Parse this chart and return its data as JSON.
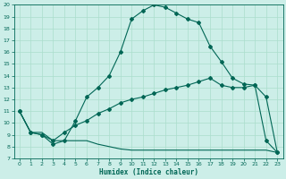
{
  "xlabel": "Humidex (Indice chaleur)",
  "xlim": [
    -0.5,
    23.5
  ],
  "ylim": [
    7,
    20
  ],
  "yticks": [
    7,
    8,
    9,
    10,
    11,
    12,
    13,
    14,
    15,
    16,
    17,
    18,
    19,
    20
  ],
  "xticks": [
    0,
    1,
    2,
    3,
    4,
    5,
    6,
    7,
    8,
    9,
    10,
    11,
    12,
    13,
    14,
    15,
    16,
    17,
    18,
    19,
    20,
    21,
    22,
    23
  ],
  "bg_color": "#cceee8",
  "line_color": "#006655",
  "grid_color": "#aaddcc",
  "series1_x": [
    0,
    1,
    2,
    3,
    4,
    5,
    6,
    7,
    8,
    9,
    10,
    11,
    12,
    13,
    14,
    15,
    16,
    17,
    18,
    19,
    20,
    21,
    22,
    23
  ],
  "series1_y": [
    11.0,
    9.2,
    9.0,
    8.2,
    8.5,
    10.2,
    12.2,
    13.0,
    14.0,
    16.0,
    18.8,
    19.5,
    20.0,
    19.8,
    19.3,
    18.8,
    18.5,
    16.5,
    15.2,
    13.8,
    13.3,
    13.2,
    12.2,
    7.5
  ],
  "series2_x": [
    0,
    1,
    2,
    3,
    4,
    5,
    6,
    7,
    8,
    9,
    10,
    11,
    12,
    13,
    14,
    15,
    16,
    17,
    18,
    19,
    20,
    21,
    22,
    23
  ],
  "series2_y": [
    11.0,
    9.2,
    9.0,
    8.5,
    9.2,
    9.8,
    10.2,
    10.8,
    11.2,
    11.7,
    12.0,
    12.2,
    12.5,
    12.8,
    13.0,
    13.2,
    13.5,
    13.8,
    13.2,
    13.0,
    13.0,
    13.2,
    8.5,
    7.5
  ],
  "series3_x": [
    0,
    1,
    2,
    3,
    4,
    5,
    6,
    7,
    8,
    9,
    10,
    11,
    12,
    13,
    14,
    15,
    16,
    17,
    18,
    19,
    20,
    21,
    22,
    23
  ],
  "series3_y": [
    11.0,
    9.2,
    9.2,
    8.5,
    8.5,
    8.5,
    8.5,
    8.2,
    8.0,
    7.8,
    7.7,
    7.7,
    7.7,
    7.7,
    7.7,
    7.7,
    7.7,
    7.7,
    7.7,
    7.7,
    7.7,
    7.7,
    7.7,
    7.5
  ]
}
